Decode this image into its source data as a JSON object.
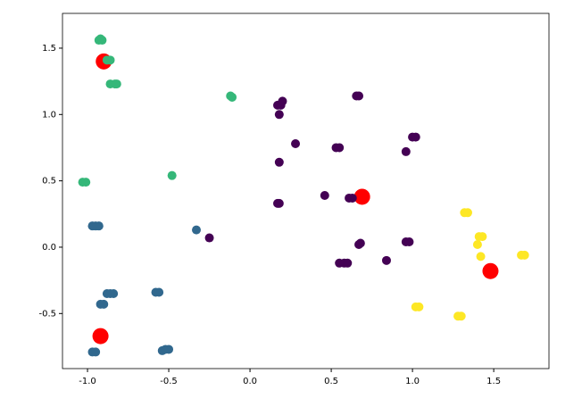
{
  "chart_data": {
    "type": "scatter",
    "xlim": [
      -1.154,
      1.84
    ],
    "ylim": [
      -0.915,
      1.762
    ],
    "xticks": [
      {
        "value": -1,
        "label": "-1.0"
      },
      {
        "value": -0.5,
        "label": "-0.5"
      },
      {
        "value": 0,
        "label": "0.0"
      },
      {
        "value": 0.5,
        "label": "0.5"
      },
      {
        "value": 1,
        "label": "1.0"
      },
      {
        "value": 1.5,
        "label": "1.5"
      }
    ],
    "yticks": [
      {
        "value": -0.5,
        "label": "-0.5"
      },
      {
        "value": 0,
        "label": "0.0"
      },
      {
        "value": 0.5,
        "label": "0.5"
      },
      {
        "value": 1,
        "label": "1.0"
      },
      {
        "value": 1.5,
        "label": "1.5"
      }
    ],
    "series": [
      {
        "color": "#ff0000",
        "x": [
          -0.9,
          0.69,
          1.48,
          -0.92
        ],
        "y": [
          1.4,
          0.38,
          -0.18,
          -0.67
        ]
      },
      {
        "color": "#440154",
        "x": [
          0.655,
          0.67,
          0.17,
          0.19,
          0.2,
          0.18,
          0.28,
          0.18,
          0.53,
          0.55,
          1.0,
          1.02,
          0.96,
          0.46,
          0.17,
          0.18,
          0.61,
          0.63,
          -0.25,
          0.68,
          0.67,
          0.96,
          0.98,
          0.55,
          0.58,
          0.6,
          0.84
        ],
        "y": [
          1.14,
          1.14,
          1.07,
          1.07,
          1.1,
          1.0,
          0.78,
          0.64,
          0.75,
          0.75,
          0.83,
          0.83,
          0.72,
          0.39,
          0.33,
          0.33,
          0.37,
          0.37,
          0.07,
          0.03,
          0.02,
          0.04,
          0.04,
          -0.12,
          -0.12,
          -0.12,
          -0.1
        ]
      },
      {
        "color": "#31688e",
        "x": [
          -0.33,
          -0.95,
          -0.93,
          -0.97,
          -0.88,
          -0.84,
          -0.86,
          -0.9,
          -0.92,
          -0.58,
          -0.56,
          -0.54,
          -0.52,
          -0.5,
          -0.97,
          -0.95
        ],
        "y": [
          0.13,
          0.16,
          0.16,
          0.16,
          -0.35,
          -0.35,
          -0.35,
          -0.43,
          -0.43,
          -0.34,
          -0.34,
          -0.78,
          -0.77,
          -0.77,
          -0.79,
          -0.79
        ]
      },
      {
        "color": "#35b779",
        "x": [
          -0.93,
          -0.91,
          -0.92,
          -0.88,
          -0.86,
          -0.86,
          -0.83,
          -0.82,
          -0.12,
          -0.11,
          -1.03,
          -1.01,
          -0.48
        ],
        "y": [
          1.56,
          1.56,
          1.57,
          1.41,
          1.41,
          1.23,
          1.23,
          1.23,
          1.14,
          1.13,
          0.49,
          0.49,
          0.54
        ]
      },
      {
        "color": "#fde725",
        "x": [
          1.32,
          1.34,
          1.41,
          1.43,
          1.4,
          1.42,
          1.67,
          1.69,
          1.02,
          1.04,
          1.28,
          1.3
        ],
        "y": [
          0.26,
          0.26,
          0.08,
          0.08,
          0.02,
          -0.07,
          -0.06,
          -0.06,
          -0.45,
          -0.45,
          -0.52,
          -0.52
        ]
      }
    ]
  }
}
